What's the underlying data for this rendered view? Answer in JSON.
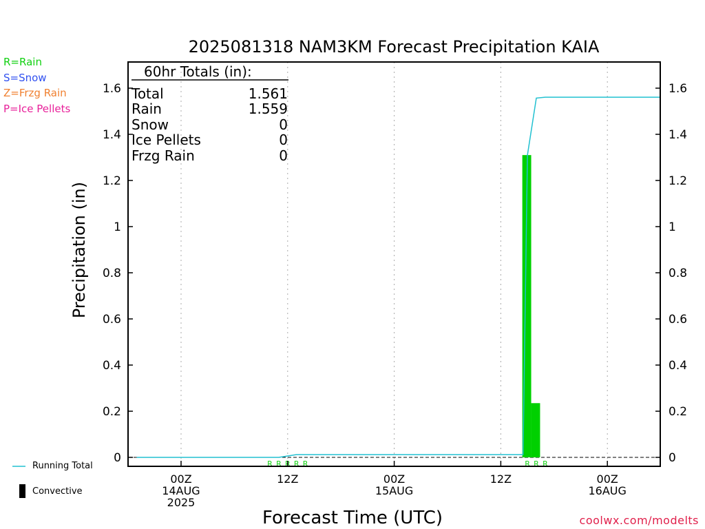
{
  "chart_data": {
    "type": "bar",
    "title": "2025081318 NAM3KM Forecast Precipitation KAIA",
    "xlabel": "Forecast Time (UTC)",
    "ylabel": "Precipitation (in)",
    "ylim": [
      0,
      1.72
    ],
    "y_ticks": [
      0,
      0.2,
      0.4,
      0.6,
      0.8,
      1,
      1.2,
      1.4,
      1.6
    ],
    "y_tick_labels": [
      "0",
      "0.2",
      "0.4",
      "0.6",
      "0.8",
      "1",
      "1.2",
      "1.4",
      "1.6"
    ],
    "x_unit": "forecast hour",
    "xlim": [
      -6,
      54
    ],
    "x_ticks": [
      {
        "hour": 0,
        "label1": "00Z",
        "label2": "14AUG",
        "label3": "2025"
      },
      {
        "hour": 12,
        "label1": "12Z",
        "label2": "",
        "label3": ""
      },
      {
        "hour": 24,
        "label1": "00Z",
        "label2": "15AUG",
        "label3": ""
      },
      {
        "hour": 36,
        "label1": "12Z",
        "label2": "",
        "label3": ""
      },
      {
        "hour": 48,
        "label1": "00Z",
        "label2": "16AUG",
        "label3": ""
      }
    ],
    "grid": "vertical dotted",
    "bars": [
      {
        "hour": 39,
        "value": 1.31,
        "type": "rain"
      },
      {
        "hour": 40,
        "value": 0.235,
        "type": "rain"
      }
    ],
    "running_total": {
      "name": "Running Total",
      "points": [
        [
          -5,
          0
        ],
        [
          11,
          0
        ],
        [
          13,
          0.012
        ],
        [
          38,
          0.012
        ],
        [
          38.5,
          0.012
        ],
        [
          39,
          1.31
        ],
        [
          40,
          1.557
        ],
        [
          41,
          1.561
        ],
        [
          54,
          1.561
        ]
      ]
    },
    "precip_type_markers": [
      {
        "hours": [
          10,
          11,
          12,
          13,
          14
        ],
        "letter": "R"
      },
      {
        "hours": [
          39,
          40,
          41
        ],
        "letter": "R"
      }
    ],
    "totals": {
      "header": "60hr Totals (in):",
      "rows": [
        {
          "label": "Total",
          "value": "1.561"
        },
        {
          "label": "Rain",
          "value": "1.559"
        },
        {
          "label": "Snow",
          "value": "0"
        },
        {
          "label": "Ice Pellets",
          "value": "0"
        },
        {
          "label": "Frzg Rain",
          "value": "0"
        }
      ]
    },
    "legend": {
      "keys": [
        {
          "text": "R=Rain",
          "color": "#10d010"
        },
        {
          "text": "S=Snow",
          "color": "#3050f0"
        },
        {
          "text": "Z=Frzg Rain",
          "color": "#f08030"
        },
        {
          "text": "P=Ice Pellets",
          "color": "#e8209a"
        }
      ],
      "running_total_label": "Running Total",
      "convective_label": "Convective"
    },
    "colors": {
      "rain_bar": "#00d000",
      "running_total": "#20c0d0",
      "marker_rain": "#10d010",
      "source": "#e0204b"
    }
  },
  "footer": {
    "source": "coolwx.com/modelts"
  }
}
